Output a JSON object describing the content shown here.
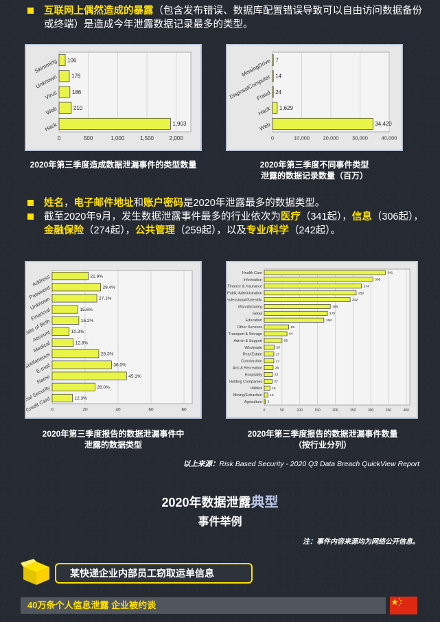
{
  "intro": {
    "highlight": "互联网上偶然造成的暴露",
    "text": "（包含发布错误、数据库配置错误导致可以自由访问数据备份或终端）是造成今年泄露数据记录最多的类型。"
  },
  "mid_bullets": {
    "b1": {
      "h1": "姓名",
      "s1": "，",
      "h2": "电子邮件地址",
      "s2": "和",
      "h3": "账户密码",
      "rest": "是2020年泄露最多的数据类型。"
    },
    "b2": {
      "p1": "截至2020年9月，发生数据泄露事件最多的行业依次为",
      "h1": "医疗",
      "v1": "（341起），",
      "h2": "信息",
      "v2": "（306起），",
      "h3": "金融保险",
      "v3": "（274起），",
      "h4": "公共管理",
      "v4": "（259起），以及",
      "h5": "专业/科学",
      "v5": "（242起）。"
    }
  },
  "chart_data": [
    {
      "type": "bar",
      "orientation": "horizontal",
      "categories": [
        "Skimming",
        "Unknown",
        "Virus",
        "Web",
        "Hack"
      ],
      "values": [
        106,
        176,
        186,
        210,
        1903
      ],
      "value_labels": [
        "106",
        "176",
        "186",
        "210",
        "1,903"
      ],
      "xticks": [
        "0",
        "500",
        "1,000",
        "1,500",
        "2,000"
      ],
      "xlim": [
        0,
        2250
      ],
      "caption": "2020年第三季度造成数据泄漏事件的类型数量"
    },
    {
      "type": "bar",
      "orientation": "horizontal",
      "categories": [
        "MissingDrive",
        "DisposalComputer",
        "Fraud",
        "Hack",
        "Web"
      ],
      "values": [
        7,
        14,
        24,
        1629,
        34420
      ],
      "value_labels": [
        "7",
        "14",
        "24",
        "1,629",
        "34,420"
      ],
      "xticks": [
        "0",
        "10,000",
        "20,000",
        "30,000",
        "40,000"
      ],
      "xlim": [
        0,
        40000
      ],
      "caption": "2020年第三季度不同事件类型泄露的数据记录数量（百万）"
    },
    {
      "type": "bar",
      "orientation": "horizontal",
      "categories": [
        "Address",
        "Password",
        "Unknown",
        "Financial",
        "Date of Birth",
        "Account",
        "Medical",
        "Miscellaneous",
        "E-mail",
        "Name",
        "Social Security",
        "Credit Card"
      ],
      "values": [
        21.9,
        29.4,
        27.1,
        15.6,
        16.2,
        10.3,
        12.8,
        28.3,
        36.0,
        45.1,
        26.0,
        12.3
      ],
      "value_labels": [
        "21.9%",
        "29.4%",
        "27.1%",
        "15.6%",
        "16.2%",
        "10.3%",
        "12.8%",
        "28.3%",
        "36.0%",
        "45.1%",
        "26.0%",
        "12.3%"
      ],
      "xticks": [
        "0",
        "20",
        "40",
        "60",
        "80"
      ],
      "xlim": [
        0,
        85
      ],
      "caption": "2020年第三季度报告的数据泄漏事件中泄露的数据类型"
    },
    {
      "type": "bar",
      "orientation": "horizontal",
      "categories": [
        "Health Care",
        "Information",
        "Finance & Insurance",
        "Public Administration",
        "Professional/Scientific",
        "Manufacturing",
        "Retail",
        "Education",
        "Other Services",
        "Transport & Storage",
        "Admin & Support",
        "Wholesale",
        "Real Estate",
        "Construction",
        "Arts & Recreation",
        "Hospitality",
        "Holding Companies",
        "Utilities",
        "Mining/Extraction",
        "Agriculture"
      ],
      "values": [
        341,
        306,
        274,
        259,
        242,
        186,
        178,
        168,
        69,
        64,
        50,
        28,
        27,
        27,
        25,
        23,
        22,
        16,
        10,
        3
      ],
      "value_labels": [
        "341",
        "306",
        "274",
        "259",
        "242",
        "186",
        "178",
        "168",
        "69",
        "64",
        "50",
        "28",
        "27",
        "27",
        "25",
        "23",
        "22",
        "16",
        "10",
        "3"
      ],
      "xticks": [
        "0",
        "50",
        "100",
        "150",
        "200",
        "250",
        "300",
        "350",
        "400"
      ],
      "xlim": [
        0,
        410
      ],
      "caption": "2020年第三季度报告的数据泄漏事件数量（按行业分列）"
    }
  ],
  "captions": {
    "c1": "2020年第三季度造成数据泄漏事件的类型数量",
    "c2a": "2020年第三季度不同事件类型",
    "c2b": "泄露的数据记录数量（百万）",
    "c3a": "2020年第三季度报告的数据泄漏事件中",
    "c3b": "泄露的数据类型",
    "c4a": "2020年第三季度报告的数据泄漏事件数量",
    "c4b": "（按行业分列）"
  },
  "source": {
    "label": "以上来源：",
    "text": "Risk Based Security - 2020 Q3 Data Breach QuickView Report"
  },
  "section": {
    "title_a": "2020年数据泄露",
    "title_hl": "典型",
    "subtitle": "事件举例",
    "note": "注：事件内容来源均为网络公开信息。"
  },
  "event": {
    "title": "某快递企业内部员工窃取运单信息",
    "headline": "40万条个人信息泄露 企业被约谈"
  },
  "colors": {
    "accent": "#ffe100",
    "bar": "#e8f447",
    "bg": "#262a33",
    "flag": "#de2910"
  }
}
